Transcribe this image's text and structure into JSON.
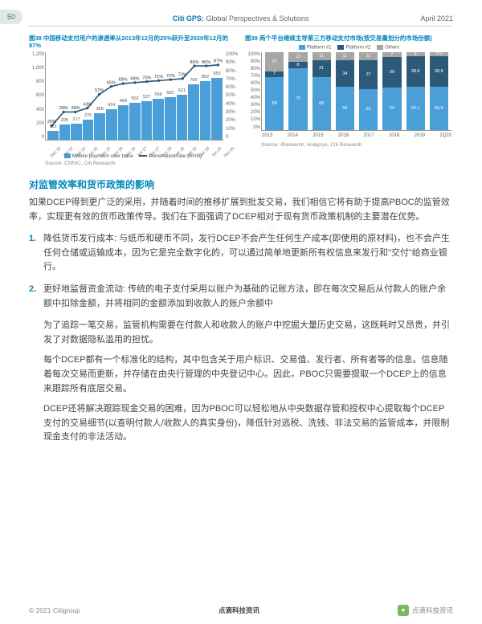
{
  "page_number": "50",
  "header": {
    "center_brand": "Citi GPS:",
    "center_sub": "Global Perspectives & Solutions",
    "date": "April 2021"
  },
  "chart_left": {
    "title": "图38 中国移动支付用户的渗透率从2013年12月的25%跃升至2020年12月的87%",
    "y_left": [
      "1,200",
      "1,000",
      "800",
      "600",
      "400",
      "200",
      "0"
    ],
    "y_right": [
      "100%",
      "90%",
      "80%",
      "70%",
      "60%",
      "50%",
      "40%",
      "30%",
      "20%",
      "10%",
      "0"
    ],
    "x": [
      "Dec 13",
      "Jun 14",
      "Dec 14",
      "Jun 15",
      "Dec 15",
      "Jun 16",
      "Dec 16",
      "Jun 17",
      "Dec 17",
      "Jun 18",
      "Dec 18",
      "Jun 19",
      "Dec 19",
      "Jun 20",
      "Dec 20"
    ],
    "bars": [
      125,
      205,
      217,
      276,
      358,
      424,
      469,
      502,
      527,
      566,
      583,
      621,
      765,
      802,
      853
    ],
    "bar_labels": [
      "125",
      "205",
      "217",
      "276",
      "358",
      "424",
      "469",
      "502",
      "527",
      "566",
      "583",
      "621",
      "765",
      "802",
      "853"
    ],
    "line_pct": [
      25,
      39,
      39,
      43,
      57,
      65,
      68,
      69,
      70,
      71,
      72,
      73,
      86,
      86,
      87
    ],
    "line_labels": [
      "25%",
      "39%",
      "39%",
      "43%",
      "57%",
      "65%",
      "68%",
      "69%",
      "70%",
      "71%",
      "72%",
      "73%",
      "86%",
      "86%",
      "87%"
    ],
    "legend_bar": "Mobile payment user base",
    "legend_line": "Penetration rate (RHS)",
    "source": "Source: CNNIC, Citi Research",
    "bar_color": "#4a9fd8",
    "line_color": "#2e5a7a"
  },
  "chart_right": {
    "title": "图39 两个平台继续主导第三方移动支付市场(按交易量划分的市场份额)",
    "y": [
      "100%",
      "90%",
      "80%",
      "70%",
      "60%",
      "50%",
      "40%",
      "30%",
      "20%",
      "10%",
      "0%"
    ],
    "x": [
      "2013",
      "2014",
      "2015",
      "2016",
      "2017",
      "2018",
      "2019",
      "2Q20"
    ],
    "legend_p1": "Platform #1",
    "legend_p2": "Platform #2",
    "legend_oth": "Others",
    "color_p1": "#4a9fd8",
    "color_p2": "#2e5a7a",
    "color_oth": "#a6a6a6",
    "stacks": [
      {
        "p1": 68,
        "p2": 7,
        "oth": 25,
        "lp1": "68",
        "lp2": "7",
        "loth": "25"
      },
      {
        "p1": 79,
        "p2": 8,
        "oth": 13,
        "lp1": "79",
        "lp2": "8",
        "loth": "13"
      },
      {
        "p1": 68,
        "p2": 21,
        "oth": 11,
        "lp1": "68",
        "lp2": "21",
        "loth": "11"
      },
      {
        "p1": 55,
        "p2": 34,
        "oth": 11,
        "lp1": "55",
        "lp2": "34",
        "loth": "11"
      },
      {
        "p1": 52,
        "p2": 37,
        "oth": 11,
        "lp1": "52",
        "lp2": "37",
        "loth": "11"
      },
      {
        "p1": 54,
        "p2": 39,
        "oth": 7,
        "lp1": "54",
        "lp2": "39",
        "loth": "7"
      },
      {
        "p1": 55.1,
        "p2": 38.9,
        "oth": 6,
        "lp1": "55.1",
        "lp2": "38.9",
        "loth": "6"
      },
      {
        "p1": 55.6,
        "p2": 38.8,
        "oth": 5.6,
        "lp1": "55.6",
        "lp2": "38.8",
        "loth": "5.6"
      }
    ],
    "source": "Source: iResearch, Analysys, Citi Research"
  },
  "body": {
    "h1": "对监管效率和货币政策的影响",
    "p1": "如果DCEP得到更广泛的采用，并随着时间的推移扩展到批发交易，我们相信它将有助于提高PBOC的监管效率，实现更有效的货币政策传导。我们在下面强调了DCEP相对于现有货币政策机制的主要潜在优势。",
    "li1_hl": "降低货币发行成本:",
    "li1": " 与纸币和硬币不同，发行DCEP不会产生任何生产成本(即使用的原材料)，也不会产生任何仓储或运输成本，因为它是完全数字化的，可以通过简单地更新所有权信息来发行和\"交付\"给商业银行。",
    "li2_hl": "更好地监督资金流动:",
    "li2": " 传统的电子支付采用以账户为基础的记账方法，即在每次交易后从付款人的账户余额中扣除金额，并将相同的金额添加到收款人的账户余额中",
    "sp1": "为了追踪一笔交易，监管机构需要在付款人和收款人的账户中挖掘大量历史交易，这既耗时又昂贵，并引发了对数据隐私滥用的担忧。",
    "sp2": "每个DCEP都有一个标准化的结构，其中包含关于用户标识、交易值、发行者、所有者等的信息。信息随着每次交易而更新，并存储在由央行管理的中央登记中心。因此，PBOC只需要提取一个DCEP上的信息来跟踪所有底层交易。",
    "sp3": "DCEP还将解决跟踪现金交易的困难，因为PBOC可以轻松地从中央数据存管和授权中心提取每个DCEP支付的交易细节(以查明付款人/收款人的真实身份)，降低针对逃税、洗钱、非法交易的监管成本，并限制现金支付的非法活动。"
  },
  "footer": {
    "left": "© 2021 Citigroup",
    "center": "点滴科技资讯",
    "right": "点滴科技资讯"
  },
  "watermark": "点滴科技资讯"
}
